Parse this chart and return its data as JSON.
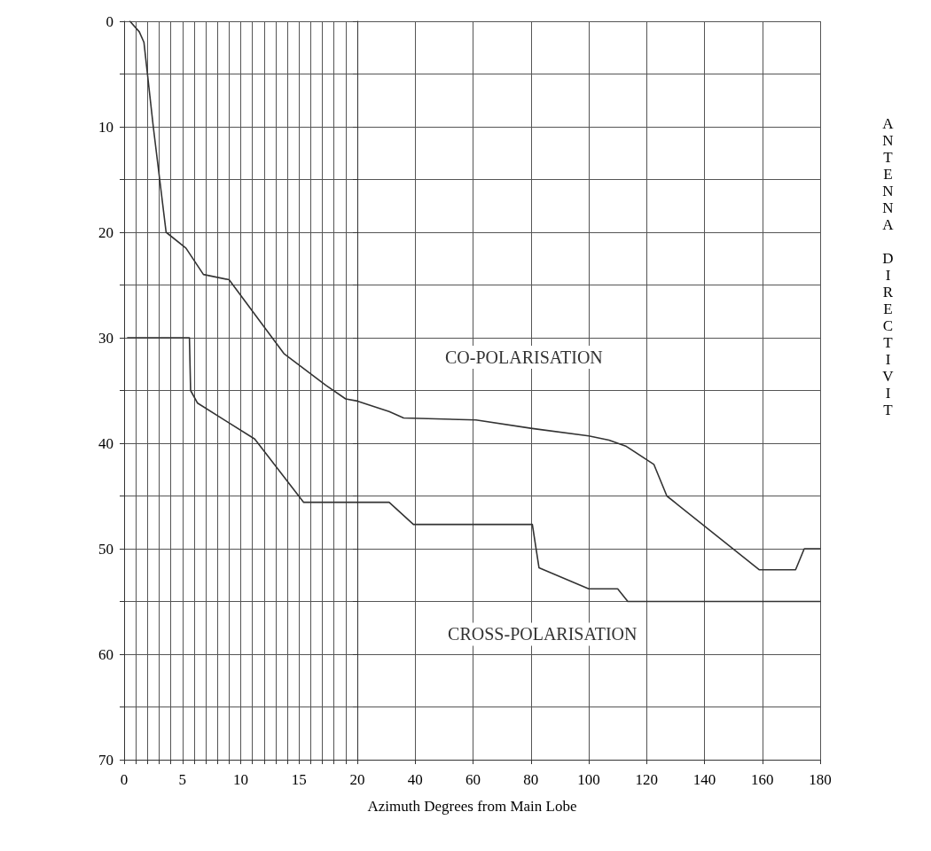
{
  "chart_data": [
    {
      "type": "line",
      "series": [
        {
          "color": "#333333",
          "x": [
            0.5,
            1.3,
            1.7,
            2.5,
            3.6,
            5.3,
            6.8,
            9,
            13.7,
            17.3,
            19,
            20
          ],
          "values": [
            0,
            1,
            2,
            10,
            20,
            21.5,
            24,
            24.5,
            31.5,
            34.5,
            35.8,
            36
          ]
        },
        {
          "color": "#333333",
          "x": [
            0.3,
            5.6,
            5.7,
            6.3,
            11.2,
            15.4,
            20
          ],
          "values": [
            30,
            30,
            35,
            36.2,
            39.6,
            45.6,
            45.6
          ]
        }
      ],
      "xlim": [
        0,
        20
      ],
      "xticks": [
        0,
        {
          "value": 1,
          "label": null
        },
        {
          "value": 2,
          "label": null
        },
        {
          "value": 3,
          "label": null
        },
        {
          "value": 4,
          "label": null
        },
        5,
        {
          "value": 6,
          "label": null
        },
        {
          "value": 7,
          "label": null
        },
        {
          "value": 8,
          "label": null
        },
        {
          "value": 9,
          "label": null
        },
        10,
        {
          "value": 11,
          "label": null
        },
        {
          "value": 12,
          "label": null
        },
        {
          "value": 13,
          "label": null
        },
        {
          "value": 14,
          "label": null
        },
        15,
        {
          "value": 16,
          "label": null
        },
        {
          "value": 17,
          "label": null
        },
        {
          "value": 18,
          "label": null
        },
        {
          "value": 19,
          "label": null
        },
        20
      ],
      "ylim": [
        70,
        0
      ],
      "yticks": [
        0,
        {
          "value": 5,
          "label": null
        },
        10,
        {
          "value": 15,
          "label": null
        },
        20,
        {
          "value": 25,
          "label": null
        },
        30,
        {
          "value": 35,
          "label": null
        },
        40,
        {
          "value": 45,
          "label": null
        },
        50,
        {
          "value": 55,
          "label": null
        },
        60,
        {
          "value": 65,
          "label": null
        },
        70
      ],
      "grid": true,
      "marker": "none",
      "line_style": "solid"
    },
    {
      "type": "line",
      "xlabel": "Azimuth Degrees from Main Lobe",
      "ylabel": "ANTENNA DIRECTIVIT",
      "series": [
        {
          "name": "CO-POLARISATION",
          "color": "#333333",
          "x": [
            20,
            31,
            36,
            61,
            80.5,
            100,
            107,
            113,
            122.5,
            127,
            159,
            171.5,
            174.5,
            180
          ],
          "values": [
            36,
            37,
            37.6,
            37.8,
            38.6,
            39.3,
            39.7,
            40.3,
            42,
            45,
            52,
            52,
            50,
            50
          ]
        },
        {
          "name": "CROSS-POLARISATION",
          "color": "#333333",
          "x": [
            20,
            31,
            39.4,
            80.5,
            82.8,
            100,
            110,
            113.5,
            180
          ],
          "values": [
            45.6,
            45.6,
            47.7,
            47.7,
            51.8,
            53.8,
            53.8,
            55,
            55
          ]
        }
      ],
      "xlim": [
        20,
        180
      ],
      "xticks": [
        {
          "value": 20,
          "label": null
        },
        40,
        60,
        80,
        100,
        120,
        140,
        160,
        180
      ],
      "ylim": [
        70,
        0
      ],
      "yticks": [
        {
          "value": 0,
          "label": null
        },
        {
          "value": 5,
          "label": null
        },
        {
          "value": 10,
          "label": null
        },
        {
          "value": 15,
          "label": null
        },
        {
          "value": 20,
          "label": null
        },
        {
          "value": 25,
          "label": null
        },
        {
          "value": 30,
          "label": null
        },
        {
          "value": 35,
          "label": null
        },
        {
          "value": 40,
          "label": null
        },
        {
          "value": 45,
          "label": null
        },
        {
          "value": 50,
          "label": null
        },
        {
          "value": 55,
          "label": null
        },
        {
          "value": 60,
          "label": null
        },
        {
          "value": 65,
          "label": null
        },
        {
          "value": 70,
          "label": null
        }
      ],
      "grid": true,
      "tick_labels": "x",
      "marker": "none",
      "line_style": "solid"
    }
  ]
}
